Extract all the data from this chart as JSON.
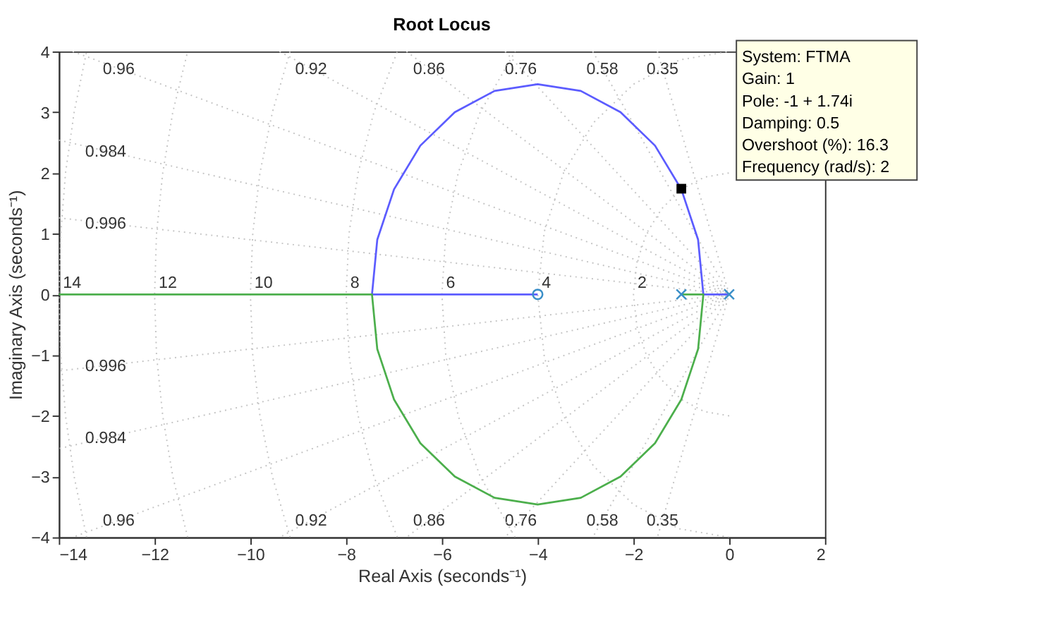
{
  "chart_data": {
    "type": "line",
    "title": "Root Locus",
    "xlabel": "Real Axis (seconds⁻¹)",
    "ylabel": "Imaginary Axis (seconds⁻¹)",
    "xlim": [
      -14,
      2
    ],
    "xticks": [
      -14,
      -12,
      -10,
      -8,
      -6,
      -4,
      -2,
      0,
      2
    ],
    "ylim": [
      -4,
      4
    ],
    "yticks": [
      -4,
      -3,
      -2,
      -1,
      0,
      1,
      2,
      3,
      4
    ],
    "grid": false,
    "series": [
      {
        "name": "0.35",
        "line_style": "dotted",
        "color": "#c4c4c4",
        "x": [
          -1.5,
          0,
          -1.5
        ],
        "values": [
          4,
          0,
          -4
        ]
      },
      {
        "name": "0.58",
        "line_style": "dotted",
        "color": "#c4c4c4",
        "x": [
          -2.85,
          0,
          -2.85
        ],
        "values": [
          4,
          0,
          -4
        ]
      },
      {
        "name": "0.76",
        "line_style": "dotted",
        "color": "#c4c4c4",
        "x": [
          -4.68,
          0,
          -4.68
        ],
        "values": [
          4,
          0,
          -4
        ]
      },
      {
        "name": "0.86",
        "line_style": "dotted",
        "color": "#c4c4c4",
        "x": [
          -6.74,
          0,
          -6.74
        ],
        "values": [
          4,
          0,
          -4
        ]
      },
      {
        "name": "0.92",
        "line_style": "dotted",
        "color": "#c4c4c4",
        "x": [
          -9.39,
          0,
          -9.39
        ],
        "values": [
          4,
          0,
          -4
        ]
      },
      {
        "name": "0.96",
        "line_style": "dotted",
        "color": "#c4c4c4",
        "x": [
          -13.71,
          0,
          -13.71
        ],
        "values": [
          4,
          0,
          -4
        ]
      },
      {
        "name": "0.984",
        "line_style": "dotted",
        "color": "#c4c4c4",
        "x": [
          -14,
          0,
          -14
        ],
        "values": [
          2.54,
          0,
          -2.54
        ]
      },
      {
        "name": "0.996",
        "line_style": "dotted",
        "color": "#c4c4c4",
        "x": [
          -14,
          0,
          -14
        ],
        "values": [
          1.26,
          0,
          -1.26
        ]
      },
      {
        "name": "2",
        "line_style": "dotted",
        "color": "#c4c4c4",
        "x": [
          0,
          -0.52,
          -1,
          -1.41,
          -1.73,
          -1.93,
          -2,
          -1.93,
          -1.73,
          -1.41,
          -1,
          -0.52,
          0
        ],
        "values": [
          -2,
          -1.93,
          -1.73,
          -1.41,
          -1,
          -0.52,
          0,
          0.52,
          1,
          1.41,
          1.73,
          1.93,
          2
        ]
      },
      {
        "name": "4",
        "line_style": "dotted",
        "color": "#c4c4c4",
        "x": [
          0,
          -1.04,
          -2,
          -2.83,
          -3.46,
          -3.86,
          -4,
          -3.86,
          -3.46,
          -2.83,
          -2,
          -1.04,
          0
        ],
        "values": [
          -4,
          -3.86,
          -3.46,
          -2.83,
          -2,
          -1.04,
          0,
          1.04,
          2,
          2.83,
          3.46,
          3.86,
          4
        ]
      },
      {
        "name": "6",
        "line_style": "dotted",
        "color": "#c4c4c4",
        "x": [
          -4.47,
          -5.2,
          -5.66,
          -5.92,
          -6,
          -5.92,
          -5.66,
          -5.2,
          -4.47
        ],
        "values": [
          -4,
          -3,
          -2,
          -1,
          0,
          1,
          2,
          3,
          4
        ]
      },
      {
        "name": "8",
        "line_style": "dotted",
        "color": "#c4c4c4",
        "x": [
          -6.93,
          -7.42,
          -7.75,
          -7.94,
          -8,
          -7.94,
          -7.75,
          -7.42,
          -6.93
        ],
        "values": [
          -4,
          -3,
          -2,
          -1,
          0,
          1,
          2,
          3,
          4
        ]
      },
      {
        "name": "10",
        "line_style": "dotted",
        "color": "#c4c4c4",
        "x": [
          -9.17,
          -9.54,
          -9.8,
          -9.95,
          -10,
          -9.95,
          -9.8,
          -9.54,
          -9.17
        ],
        "values": [
          -4,
          -3,
          -2,
          -1,
          0,
          1,
          2,
          3,
          4
        ]
      },
      {
        "name": "12",
        "line_style": "dotted",
        "color": "#c4c4c4",
        "x": [
          -11.31,
          -11.62,
          -11.83,
          -11.96,
          -12,
          -11.96,
          -11.83,
          -11.62,
          -11.31
        ],
        "values": [
          -4,
          -3,
          -2,
          -1,
          0,
          1,
          2,
          3,
          4
        ]
      },
      {
        "name": "14",
        "line_style": "dotted",
        "color": "#c4c4c4",
        "x": [
          -13.42,
          -13.68,
          -13.86,
          -13.96,
          -14,
          -13.96,
          -13.86,
          -13.68,
          -13.42
        ],
        "values": [
          -4,
          -3,
          -2,
          -1,
          0,
          1,
          2,
          3,
          4
        ]
      },
      {
        "line_style": "solid",
        "color": "#5c5cff",
        "x": [
          0,
          -0.54,
          -0.65,
          -1,
          -1.55,
          -2.27,
          -3.1,
          -4,
          -4.9,
          -5.73,
          -6.45,
          -7,
          -7.35,
          -7.46,
          -4
        ],
        "values": [
          0,
          0,
          0.9,
          1.73,
          2.45,
          3,
          3.35,
          3.46,
          3.35,
          3,
          2.45,
          1.73,
          0.9,
          0,
          0
        ]
      },
      {
        "line_style": "solid",
        "color": "#4caf4c",
        "x": [
          -1,
          -0.54,
          -0.65,
          -1,
          -1.55,
          -2.27,
          -3.1,
          -4,
          -4.9,
          -5.73,
          -6.45,
          -7,
          -7.35,
          -7.46,
          -14
        ],
        "values": [
          0,
          0,
          -0.9,
          -1.73,
          -2.45,
          -3,
          -3.35,
          -3.46,
          -3.35,
          -3,
          -2.45,
          -1.73,
          -0.9,
          0,
          0
        ]
      },
      {
        "type": "scatter",
        "marker": "cross",
        "color": "#3a8fc8",
        "x": [
          0,
          -1
        ],
        "values": [
          0,
          0
        ]
      },
      {
        "type": "scatter",
        "marker": "circle",
        "color": "#3a8fc8",
        "x": [
          -4
        ],
        "values": [
          0
        ]
      },
      {
        "type": "scatter",
        "marker": "square",
        "color": "#000000",
        "x": [
          -1
        ],
        "values": [
          1.74
        ]
      }
    ],
    "annotations": [
      "System: FTMA",
      "Gain: 1",
      "Pole: -1 + 1.74i",
      "Damping: 0.5",
      "Overshoot (%): 16.3",
      "Frequency (rad/s): 2"
    ]
  }
}
